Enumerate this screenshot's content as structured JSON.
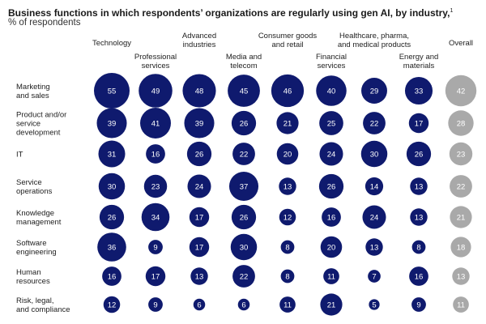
{
  "chart_data": {
    "type": "bubble-matrix",
    "title": "Business functions in which respondents’ organizations are regularly using gen AI, by industry,",
    "title_footnote": "1",
    "subtitle": "% of respondents",
    "columns": [
      {
        "key": "technology",
        "label": [
          "Technology"
        ]
      },
      {
        "key": "professional",
        "label": [
          "Professional",
          "services"
        ]
      },
      {
        "key": "advanced",
        "label": [
          "Advanced",
          "industries"
        ]
      },
      {
        "key": "media",
        "label": [
          "Media and",
          "telecom"
        ]
      },
      {
        "key": "consumer",
        "label": [
          "Consumer goods",
          "and retail"
        ]
      },
      {
        "key": "financial",
        "label": [
          "Financial",
          "services"
        ]
      },
      {
        "key": "healthcare",
        "label": [
          "Healthcare, pharma,",
          "and medical products"
        ]
      },
      {
        "key": "energy",
        "label": [
          "Energy and",
          "materials"
        ]
      },
      {
        "key": "overall",
        "label": [
          "Overall"
        ]
      }
    ],
    "rows": [
      {
        "label": [
          "Marketing",
          "and sales"
        ],
        "values": [
          55,
          49,
          48,
          45,
          46,
          40,
          29,
          33,
          42
        ]
      },
      {
        "label": [
          "Product and/or",
          "service",
          "development"
        ],
        "values": [
          39,
          41,
          39,
          26,
          21,
          25,
          22,
          17,
          28
        ]
      },
      {
        "label": [
          "IT"
        ],
        "values": [
          31,
          16,
          26,
          22,
          20,
          24,
          30,
          26,
          23
        ]
      },
      {
        "label": [
          "Service",
          "operations"
        ],
        "values": [
          30,
          23,
          24,
          37,
          13,
          26,
          14,
          13,
          22
        ]
      },
      {
        "label": [
          "Knowledge",
          "management"
        ],
        "values": [
          26,
          34,
          17,
          26,
          12,
          16,
          24,
          13,
          21
        ]
      },
      {
        "label": [
          "Software",
          "engineering"
        ],
        "values": [
          36,
          9,
          17,
          30,
          8,
          20,
          13,
          8,
          18
        ]
      },
      {
        "label": [
          "Human",
          "resources"
        ],
        "values": [
          16,
          17,
          13,
          22,
          8,
          11,
          7,
          16,
          13
        ]
      },
      {
        "label": [
          "Risk, legal,",
          "and compliance"
        ],
        "values": [
          12,
          9,
          6,
          6,
          11,
          21,
          5,
          9,
          11
        ]
      }
    ],
    "colors": {
      "industry": "#0f1a6e",
      "overall": "#a9a9a9",
      "value_text": "#ffffff"
    }
  }
}
